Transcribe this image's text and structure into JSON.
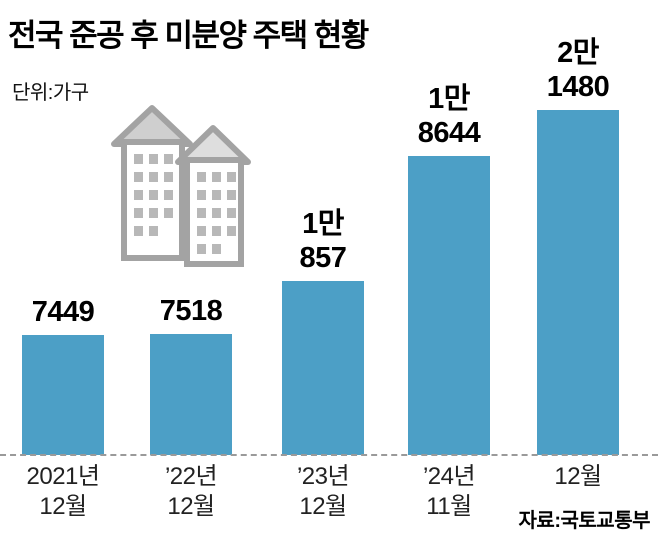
{
  "title": "전국 준공 후 미분양 주택 현황",
  "unit_label": "단위:가구",
  "source": "자료:국토교통부",
  "colors": {
    "bar": "#4c9fc6",
    "baseline_dash": "#9a9a9a",
    "building_outline": "#a3a3a3"
  },
  "chart_data": {
    "type": "bar",
    "title": "전국 준공 후 미분양 주택 현황",
    "unit": "가구",
    "categories": [
      "2021년 12월",
      "’22년 12월",
      "’23년 12월",
      "’24년 11월",
      "12월"
    ],
    "category_lines": [
      [
        "2021년",
        "12월"
      ],
      [
        "’22년",
        "12월"
      ],
      [
        "’23년",
        "12월"
      ],
      [
        "’24년",
        "11월"
      ],
      [
        "12월"
      ]
    ],
    "values": [
      7449,
      7518,
      10857,
      18644,
      21480
    ],
    "value_label_lines": [
      [
        "7449"
      ],
      [
        "7518"
      ],
      [
        "1만",
        "857"
      ],
      [
        "1만",
        "8644"
      ],
      [
        "2만",
        "1480"
      ]
    ],
    "xlabel": "",
    "ylabel": "",
    "ylim": [
      0,
      21480
    ],
    "grid": false,
    "legend": "none",
    "source": "자료:국토교통부"
  }
}
